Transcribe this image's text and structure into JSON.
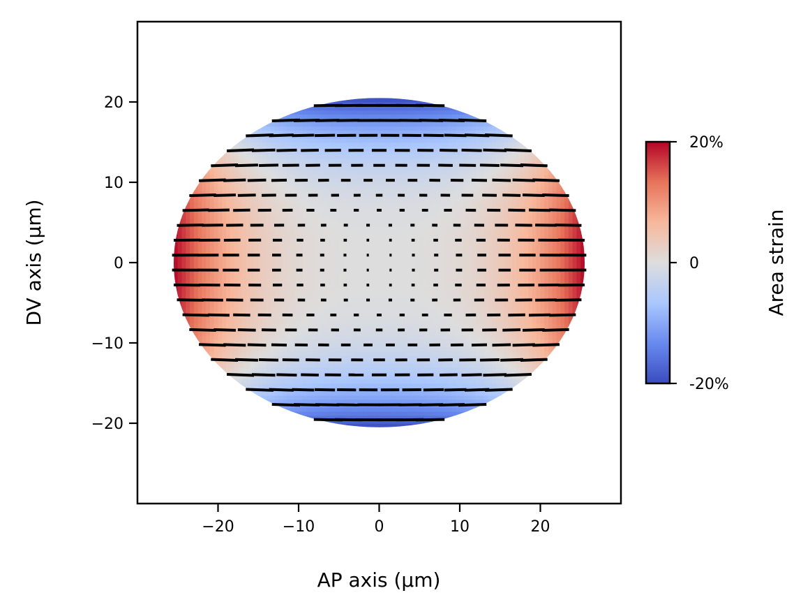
{
  "chart_data": {
    "type": "heatmap",
    "title": "",
    "xlabel": "AP axis (μm)",
    "ylabel": "DV axis (μm)",
    "xlim": [
      -30,
      30
    ],
    "ylim": [
      -30,
      30
    ],
    "x_ticks": [
      -20,
      -10,
      0,
      10,
      20
    ],
    "y_ticks": [
      -20,
      -10,
      0,
      10,
      20
    ],
    "x_tick_labels": [
      "−20",
      "−10",
      "0",
      "10",
      "20"
    ],
    "y_tick_labels": [
      "−20",
      "−10",
      "0",
      "10",
      "20"
    ],
    "ellipse": {
      "center": [
        0,
        0
      ],
      "semi_axis_ap": 25.5,
      "semi_axis_dv": 20.5
    },
    "field": "Area strain: about +20% at the AP poles (x = ±25), about −20% at the DV poles (y = ±20), ≈0 across the centre; black bars show in-plane orientation, aligned with the AP axis, with length growing toward the ellipse edge",
    "colorbar": {
      "label": "Area strain",
      "min": -0.2,
      "max": 0.2,
      "ticks": [
        0.2,
        0,
        -0.2
      ],
      "tick_labels": [
        "20%",
        "0",
        "-20%"
      ],
      "colormap": [
        "#3b4cc0",
        "#688aef",
        "#aac7fd",
        "#dddddd",
        "#f7b89c",
        "#e7745b",
        "#b40426"
      ]
    },
    "grid": false,
    "legend": "none"
  }
}
